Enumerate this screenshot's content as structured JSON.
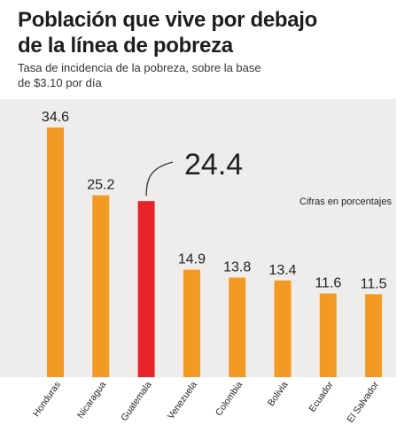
{
  "header": {
    "title_line1": "Población que vive por debajo",
    "title_line2": "de la línea de pobreza",
    "subtitle_line1": "Tasa de incidencia de la pobreza, sobre la base",
    "subtitle_line2": "de $3.10 por día"
  },
  "note": "Cifras en porcentajes",
  "colors": {
    "bar": "#f39a25",
    "highlight": "#e8242a",
    "panel": "#efedeb",
    "text": "#222222"
  },
  "chart_data": {
    "type": "bar",
    "title": "Población que vive por debajo de la línea de pobreza",
    "subtitle": "Tasa de incidencia de la pobreza, sobre la base de $3.10 por día",
    "categories": [
      "Honduras",
      "Nicaragua",
      "Guatemala",
      "Venezuela",
      "Colombia",
      "Bolivia",
      "Ecuador",
      "El Salvador"
    ],
    "values": [
      34.6,
      25.2,
      24.4,
      14.9,
      13.8,
      13.4,
      11.6,
      11.5
    ],
    "value_labels": [
      "34.6",
      "25.2",
      "24.4",
      "14.9",
      "13.8",
      "13.4",
      "11.6",
      "11.5"
    ],
    "highlight_category": "Guatemala",
    "unit_note": "Cifras en porcentajes",
    "grid": false,
    "legend": "none"
  }
}
